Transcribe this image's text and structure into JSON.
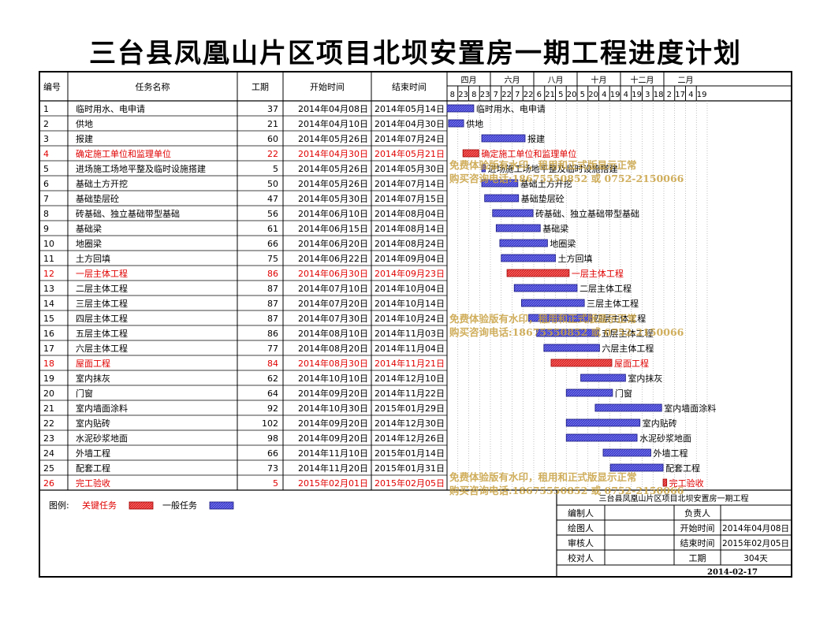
{
  "title": "三台县凤凰山片区项目北坝安置房一期工程进度计划",
  "columns": {
    "id": "编号",
    "name": "任务名称",
    "duration": "工期",
    "start": "开始时间",
    "end": "结束时间"
  },
  "timeline": {
    "months": [
      "四月",
      "六月",
      "八月",
      "十月",
      "十二月",
      "二月"
    ],
    "days": [
      "8",
      "23",
      "8",
      "23",
      "7",
      "22",
      "7",
      "22",
      "6",
      "21",
      "5",
      "20",
      "5",
      "20",
      "4",
      "19",
      "4",
      "19",
      "3",
      "18",
      "2",
      "17",
      "4",
      "19"
    ],
    "origin_date": "2014-04-08",
    "tick_days": 15
  },
  "colors": {
    "critical": "#e02020",
    "normal": "#3333cc",
    "critical_text": "#e00000",
    "watermark": "#c8a040"
  },
  "chart_data": {
    "type": "bar",
    "tasks": [
      {
        "id": "1",
        "name": "临时用水、电申请",
        "duration": "37",
        "start": "2014年04月08日",
        "end": "2014年05月14日",
        "critical": false
      },
      {
        "id": "2",
        "name": "供地",
        "duration": "21",
        "start": "2014年04月10日",
        "end": "2014年04月30日",
        "critical": false
      },
      {
        "id": "3",
        "name": "报建",
        "duration": "60",
        "start": "2014年05月26日",
        "end": "2014年07月24日",
        "critical": false
      },
      {
        "id": "4",
        "name": "确定施工单位和监理单位",
        "duration": "22",
        "start": "2014年04月30日",
        "end": "2014年05月21日",
        "critical": true
      },
      {
        "id": "5",
        "name": "进场施工场地平整及临时设施搭建",
        "duration": "5",
        "start": "2014年05月26日",
        "end": "2014年05月30日",
        "critical": false
      },
      {
        "id": "6",
        "name": "基础土方开挖",
        "duration": "50",
        "start": "2014年05月26日",
        "end": "2014年07月14日",
        "critical": false
      },
      {
        "id": "7",
        "name": "基础垫层砼",
        "duration": "47",
        "start": "2014年05月30日",
        "end": "2014年07月15日",
        "critical": false
      },
      {
        "id": "8",
        "name": "砖基础、独立基础带型基础",
        "duration": "56",
        "start": "2014年06月10日",
        "end": "2014年08月04日",
        "critical": false
      },
      {
        "id": "9",
        "name": "基础梁",
        "duration": "61",
        "start": "2014年06月15日",
        "end": "2014年08月14日",
        "critical": false
      },
      {
        "id": "10",
        "name": "地圈梁",
        "duration": "66",
        "start": "2014年06月20日",
        "end": "2014年08月24日",
        "critical": false
      },
      {
        "id": "11",
        "name": "土方回填",
        "duration": "75",
        "start": "2014年06月22日",
        "end": "2014年09月04日",
        "critical": false
      },
      {
        "id": "12",
        "name": "一层主体工程",
        "duration": "86",
        "start": "2014年06月30日",
        "end": "2014年09月23日",
        "critical": true
      },
      {
        "id": "13",
        "name": "二层主体工程",
        "duration": "87",
        "start": "2014年07月10日",
        "end": "2014年10月04日",
        "critical": false
      },
      {
        "id": "14",
        "name": "三层主体工程",
        "duration": "87",
        "start": "2014年07月20日",
        "end": "2014年10月14日",
        "critical": false
      },
      {
        "id": "15",
        "name": "四层主体工程",
        "duration": "87",
        "start": "2014年07月30日",
        "end": "2014年10月24日",
        "critical": false
      },
      {
        "id": "16",
        "name": "五层主体工程",
        "duration": "86",
        "start": "2014年08月10日",
        "end": "2014年11月03日",
        "critical": false
      },
      {
        "id": "17",
        "name": "六层主体工程",
        "duration": "77",
        "start": "2014年08月20日",
        "end": "2014年11月04日",
        "critical": false
      },
      {
        "id": "18",
        "name": "屋面工程",
        "duration": "84",
        "start": "2014年08月30日",
        "end": "2014年11月21日",
        "critical": true
      },
      {
        "id": "19",
        "name": "室内抹灰",
        "duration": "62",
        "start": "2014年10月10日",
        "end": "2014年12月10日",
        "critical": false
      },
      {
        "id": "20",
        "name": "门窗",
        "duration": "64",
        "start": "2014年09月20日",
        "end": "2014年11月22日",
        "critical": false
      },
      {
        "id": "21",
        "name": "室内墙面涂料",
        "duration": "92",
        "start": "2014年10月30日",
        "end": "2015年01月29日",
        "critical": false
      },
      {
        "id": "22",
        "name": "室内贴砖",
        "duration": "102",
        "start": "2014年09月20日",
        "end": "2014年12月30日",
        "critical": false
      },
      {
        "id": "23",
        "name": "水泥砂浆地面",
        "duration": "98",
        "start": "2014年09月20日",
        "end": "2014年12月26日",
        "critical": false
      },
      {
        "id": "24",
        "name": "外墙工程",
        "duration": "66",
        "start": "2014年11月10日",
        "end": "2015年01月14日",
        "critical": false
      },
      {
        "id": "25",
        "name": "配套工程",
        "duration": "73",
        "start": "2014年11月20日",
        "end": "2015年01月31日",
        "critical": false
      },
      {
        "id": "26",
        "name": "完工验收",
        "duration": "5",
        "start": "2015年02月01日",
        "end": "2015年02月05日",
        "critical": true
      }
    ]
  },
  "legend": {
    "label": "图例:",
    "critical": "关键任务",
    "normal": "一般任务"
  },
  "info": {
    "project": "三台县凤凰山片区项目北坝安置房一期工程",
    "rows": [
      [
        "编制人",
        "",
        "负责人",
        ""
      ],
      [
        "绘图人",
        "",
        "开始时间",
        "2014年04月08日"
      ],
      [
        "审核人",
        "",
        "结束时间",
        "2015年02月05日"
      ],
      [
        "校对人",
        "",
        "工期",
        "304天"
      ]
    ],
    "date": "2014-02-17"
  },
  "watermarks": [
    [
      "免费体验版有水印，租用和正式版显示正常",
      "购买咨询电话:18675550852 或 0752-2150066"
    ],
    [
      "免费体验版有水印，租用和正式版显示正常",
      "购买咨询电话:18675550852 或 0752-2150066"
    ],
    [
      "免费体验版有水印，租用和正式版显示正常",
      "购买咨询电话:18675550852 或 0752-2150066"
    ]
  ]
}
